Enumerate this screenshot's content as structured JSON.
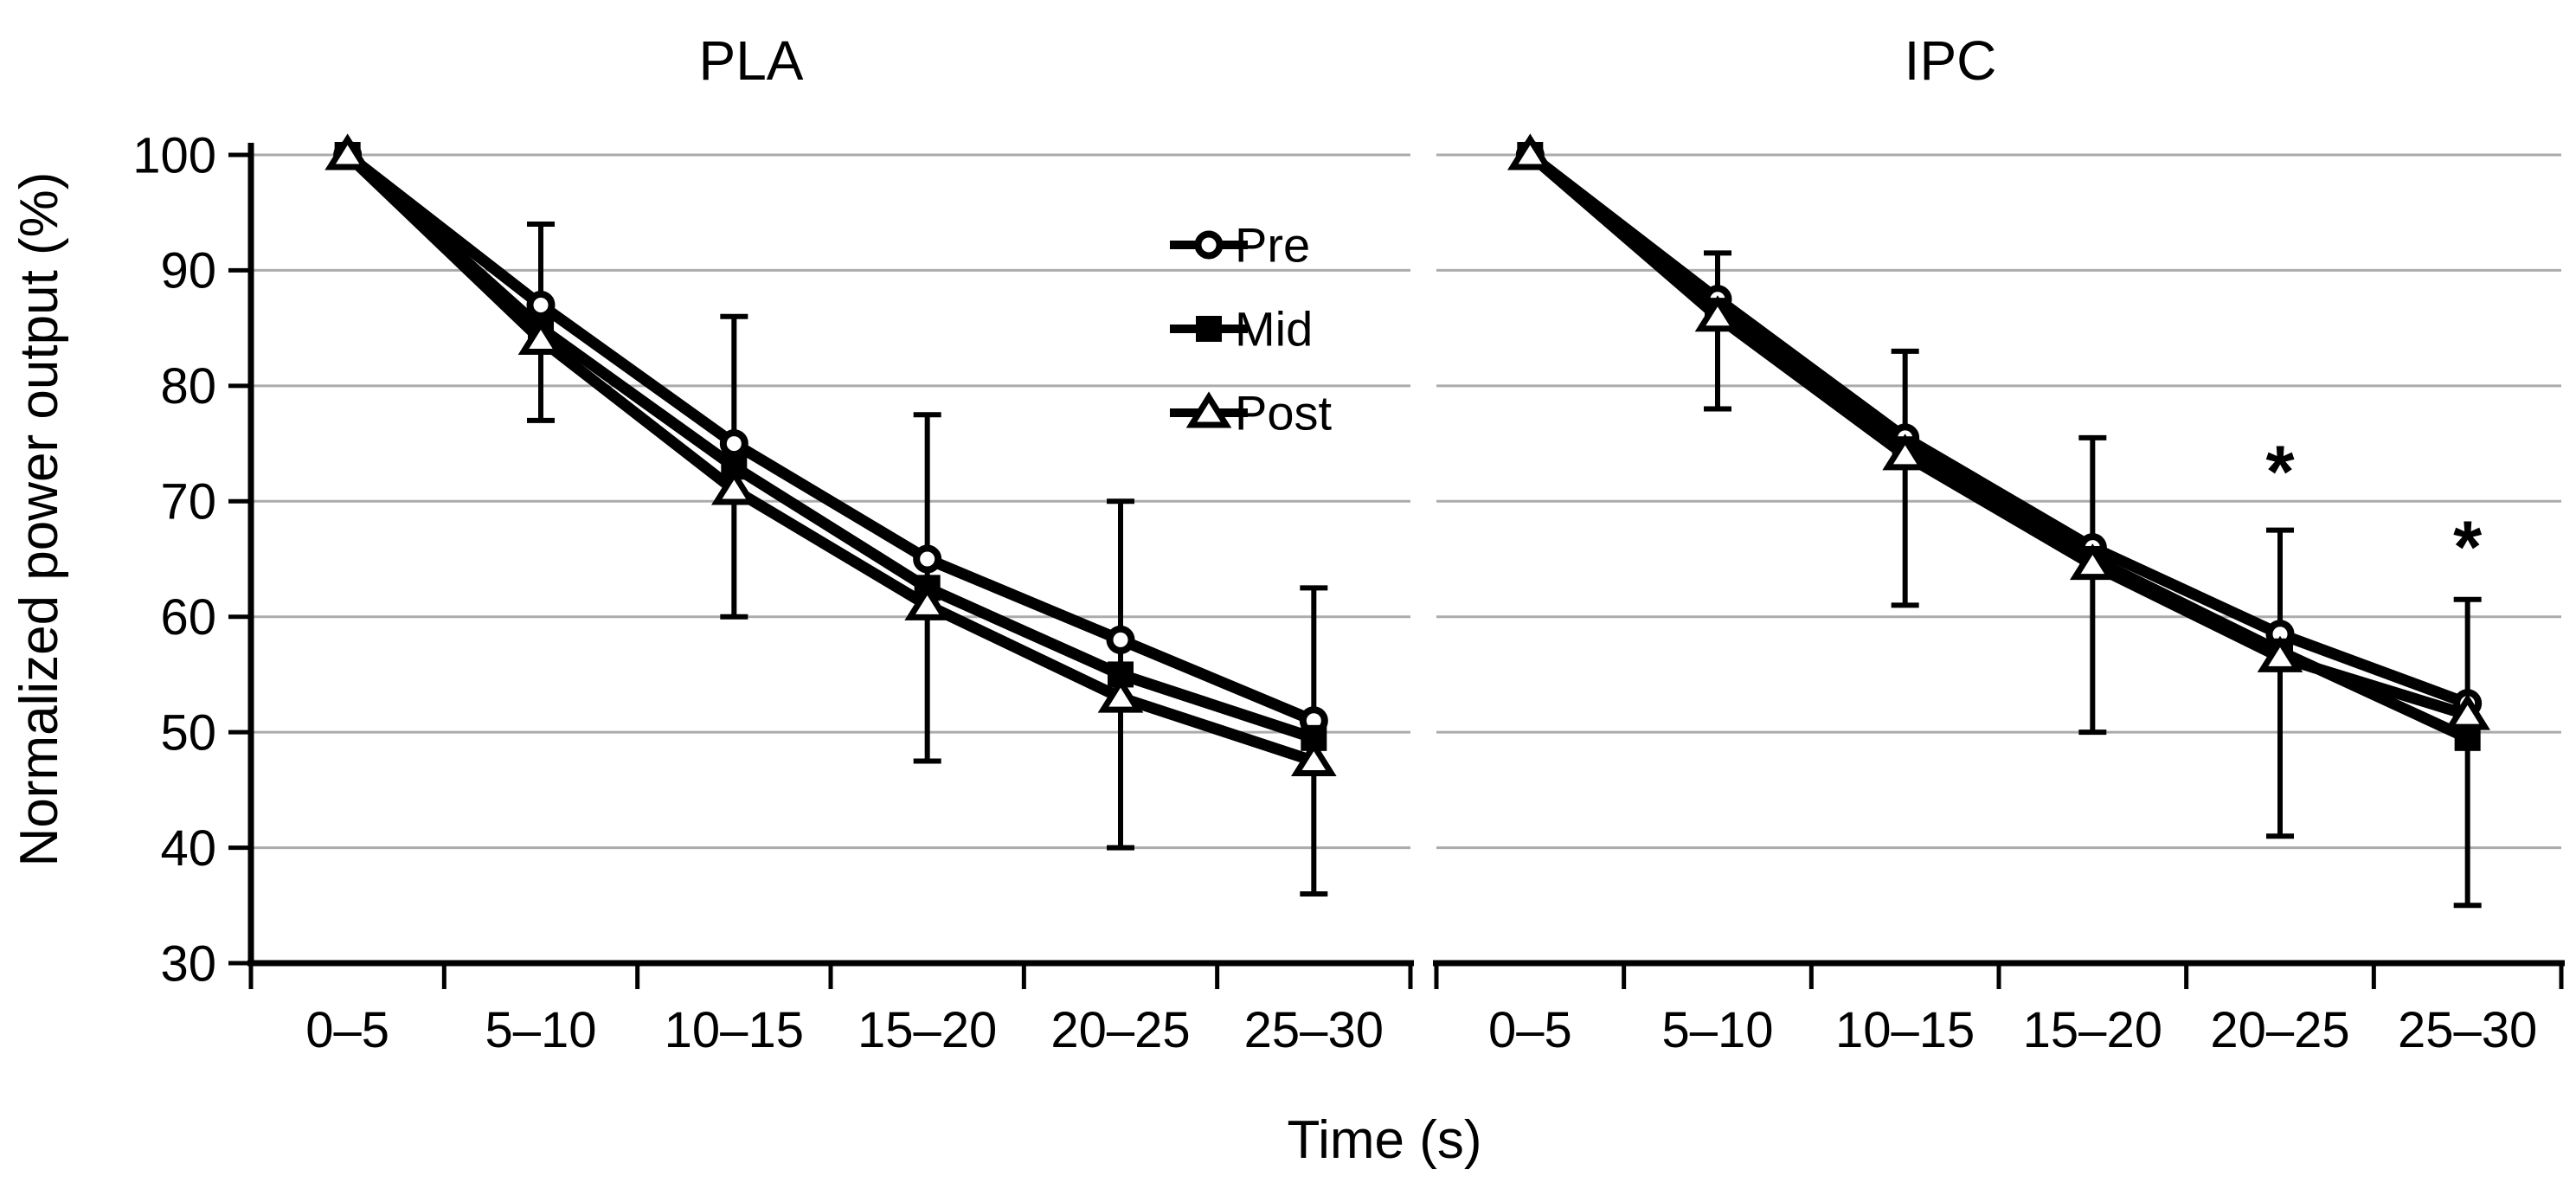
{
  "colors": {
    "series": "#000000",
    "grid": "#ababab",
    "background": "#ffffff",
    "marker_fill": "#ffffff",
    "text": "#000000"
  },
  "legend": {
    "position": "inside-top-right-of-first-panel"
  },
  "chart_data": [
    {
      "type": "line",
      "title": "PLA",
      "xlabel": "Time (s)",
      "ylabel": "Normalized power output (%)",
      "categories": [
        "0–5",
        "5–10",
        "10–15",
        "15–20",
        "20–25",
        "25–30"
      ],
      "ylim": [
        30,
        100
      ],
      "yticks": [
        30,
        40,
        50,
        60,
        70,
        80,
        90,
        100
      ],
      "grid": true,
      "series": [
        {
          "name": "Pre",
          "marker": "circle-open",
          "values": [
            100,
            87,
            75,
            65,
            58,
            51
          ]
        },
        {
          "name": "Mid",
          "marker": "square-filled",
          "values": [
            100,
            85,
            73,
            62.5,
            55,
            49.5
          ]
        },
        {
          "name": "Post",
          "marker": "triangle-open",
          "values": [
            100,
            84,
            71,
            61,
            53,
            47.5
          ]
        }
      ],
      "error_bars": {
        "upper": [
          100,
          94,
          86,
          77.5,
          70,
          62.5
        ],
        "lower": [
          100,
          77,
          60,
          47.5,
          40,
          36
        ]
      },
      "annotations": []
    },
    {
      "type": "line",
      "title": "IPC",
      "xlabel": "Time (s)",
      "ylabel": "Normalized power output (%)",
      "categories": [
        "0–5",
        "5–10",
        "10–15",
        "15–20",
        "20–25",
        "25–30"
      ],
      "ylim": [
        30,
        100
      ],
      "yticks": [
        30,
        40,
        50,
        60,
        70,
        80,
        90,
        100
      ],
      "grid": true,
      "series": [
        {
          "name": "Pre",
          "marker": "circle-open",
          "values": [
            100,
            87.5,
            75.5,
            66,
            58.5,
            52.5
          ]
        },
        {
          "name": "Mid",
          "marker": "square-filled",
          "values": [
            100,
            86.5,
            74.5,
            65,
            57,
            49.5
          ]
        },
        {
          "name": "Post",
          "marker": "triangle-open",
          "values": [
            100,
            86,
            74,
            64.5,
            56.5,
            51.5
          ]
        }
      ],
      "error_bars": {
        "upper": [
          100,
          91.5,
          83,
          75.5,
          67.5,
          61.5
        ],
        "lower": [
          100,
          78,
          61,
          50,
          41,
          35
        ]
      },
      "annotations": [
        {
          "text": "*",
          "category": "20–25",
          "category_index": 4,
          "value": 73.5
        },
        {
          "text": "*",
          "category": "25–30",
          "category_index": 5,
          "value": 67
        }
      ]
    }
  ]
}
